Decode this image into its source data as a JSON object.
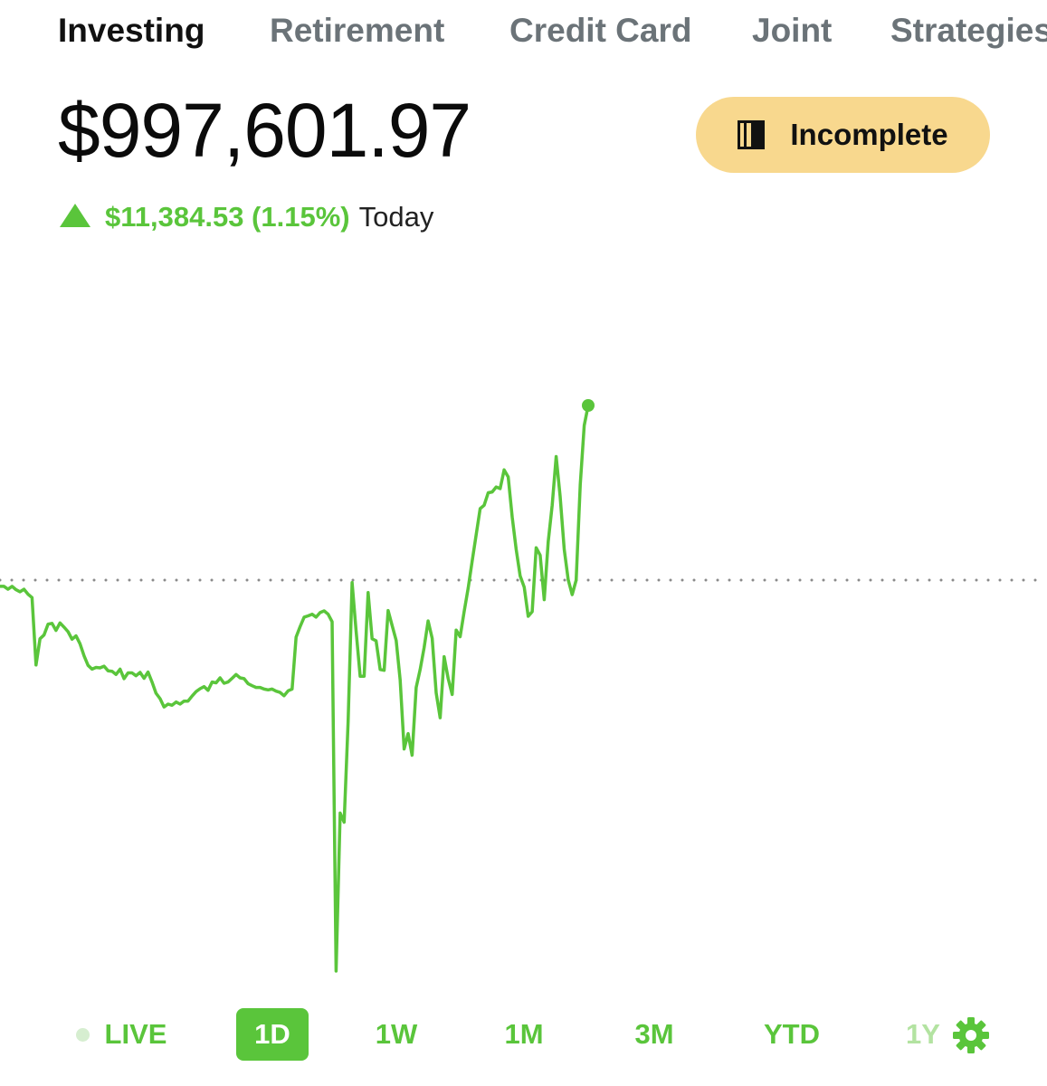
{
  "tabs": [
    {
      "label": "Investing",
      "active": true
    },
    {
      "label": "Retirement",
      "active": false
    },
    {
      "label": "Credit Card",
      "active": false
    },
    {
      "label": "Joint",
      "active": false
    },
    {
      "label": "Strategies",
      "active": false
    }
  ],
  "portfolio": {
    "balance": "$997,601.97",
    "change_amount": "$11,384.53 (1.15%)",
    "change_period": "Today",
    "change_direction": "up"
  },
  "status_pill": {
    "label": "Incomplete",
    "icon": "progress-bar-icon",
    "color": "#f8d88e"
  },
  "colors": {
    "positive": "#5ac53b",
    "text": "#111111",
    "tab_inactive": "#6b7378"
  },
  "chart_data": {
    "type": "line",
    "baseline": "previous-close",
    "series": [
      {
        "values": [
          0.985,
          0.985,
          0.978,
          0.985,
          0.977,
          0.972,
          0.978,
          0.966,
          0.958,
          0.796,
          0.859,
          0.868,
          0.894,
          0.896,
          0.879,
          0.897,
          0.887,
          0.876,
          0.858,
          0.866,
          0.847,
          0.818,
          0.795,
          0.786,
          0.79,
          0.789,
          0.793,
          0.782,
          0.781,
          0.773,
          0.786,
          0.763,
          0.777,
          0.777,
          0.77,
          0.778,
          0.764,
          0.779,
          0.755,
          0.728,
          0.715,
          0.695,
          0.702,
          0.699,
          0.707,
          0.702,
          0.709,
          0.709,
          0.721,
          0.732,
          0.739,
          0.744,
          0.735,
          0.755,
          0.753,
          0.765,
          0.752,
          0.755,
          0.764,
          0.773,
          0.765,
          0.763,
          0.751,
          0.746,
          0.742,
          0.742,
          0.738,
          0.736,
          0.738,
          0.733,
          0.73,
          0.722,
          0.734,
          0.738,
          0.863,
          0.888,
          0.911,
          0.914,
          0.918,
          0.911,
          0.922,
          0.926,
          0.918,
          0.9,
          0.06,
          0.44,
          0.418,
          0.66,
          0.994,
          0.878,
          0.769,
          0.769,
          0.97,
          0.859,
          0.854,
          0.785,
          0.783,
          0.927,
          0.891,
          0.855,
          0.76,
          0.594,
          0.631,
          0.579,
          0.742,
          0.785,
          0.838,
          0.902,
          0.86,
          0.729,
          0.669,
          0.816,
          0.764,
          0.725,
          0.88,
          0.864,
          0.924,
          0.98,
          1.046,
          1.109,
          1.172,
          1.18,
          1.21,
          1.212,
          1.224,
          1.22,
          1.265,
          1.248,
          1.152,
          1.074,
          1.01,
          0.983,
          0.913,
          0.924,
          1.078,
          1.06,
          0.953,
          1.092,
          1.18,
          1.297,
          1.201,
          1.074,
          1.001,
          0.965,
          1.0,
          1.229,
          1.372,
          1.42
        ]
      }
    ]
  },
  "range_selector": {
    "live_label": "LIVE",
    "options": [
      "1D",
      "1W",
      "1M",
      "3M",
      "YTD",
      "1Y"
    ],
    "selected": "1D",
    "settings_icon": "gear-icon"
  }
}
